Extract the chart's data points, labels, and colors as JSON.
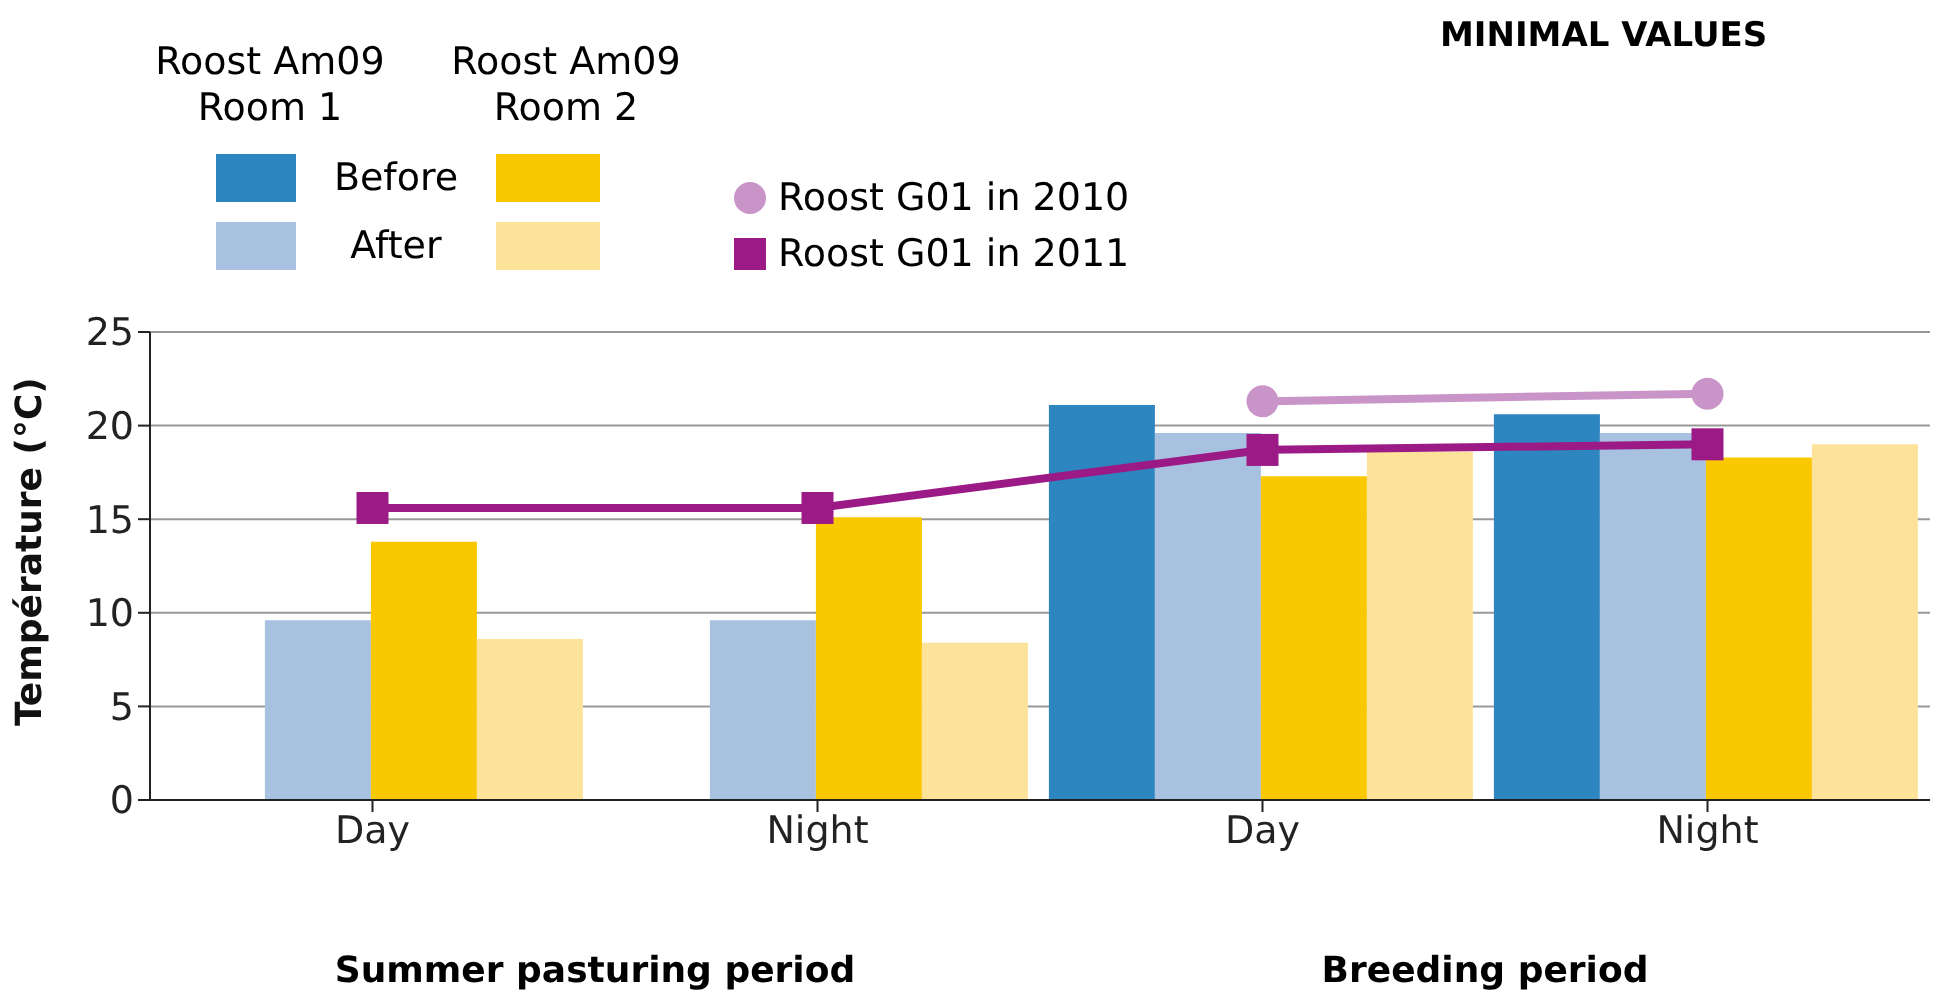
{
  "chart_data": {
    "type": "bar",
    "title": "MINIMAL VALUES",
    "ylabel": "Température (°C)",
    "categories": [
      "Day",
      "Night",
      "Day",
      "Night"
    ],
    "series": [
      {
        "name": "Before",
        "color": "#2e86c1",
        "values": [
          null,
          null,
          21.1,
          20.6
        ]
      },
      {
        "name": "After",
        "color": "#a8c1e0",
        "values": [
          9.6,
          9.6,
          19.6,
          19.6
        ]
      },
      {
        "color": "#f9c800",
        "values": [
          13.8,
          15.1,
          17.3,
          18.3
        ]
      },
      {
        "color": "#fde29a",
        "values": [
          8.6,
          8.4,
          18.6,
          19.0
        ]
      },
      {
        "name": "Roost G01 in 2010",
        "type": "line",
        "color": "#c994c8",
        "marker": "circle",
        "values": [
          null,
          null,
          21.3,
          21.7
        ]
      },
      {
        "name": "Roost G01 in 2011",
        "type": "line",
        "color": "#9b1a85",
        "marker": "square",
        "values": [
          15.6,
          15.6,
          18.7,
          19.0
        ]
      }
    ],
    "annotations": [
      "Roost Am09 Room 1",
      "Roost Am09 Room 2",
      "Summer pasturing period",
      "Breeding period"
    ],
    "ylim": [
      0,
      25
    ],
    "yticks": [
      0,
      5,
      10,
      15,
      20,
      25
    ],
    "grid": "y",
    "legend": "top left"
  }
}
